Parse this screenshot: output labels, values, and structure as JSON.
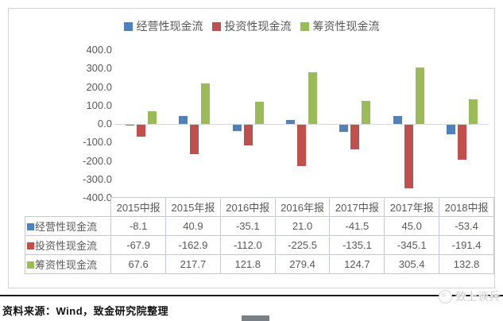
{
  "chart_data": {
    "type": "bar",
    "title": "",
    "categories": [
      "2015中报",
      "2015年报",
      "2016中报",
      "2016年报",
      "2017中报",
      "2017年报",
      "2018中报"
    ],
    "series": [
      {
        "name": "经营性现金流",
        "color": "#4f81bd",
        "values": [
          -8.1,
          40.9,
          -35.1,
          21.0,
          -41.5,
          45.0,
          -53.4
        ]
      },
      {
        "name": "投资性现金流",
        "color": "#c0504d",
        "values": [
          -67.9,
          -162.9,
          -112.0,
          -225.5,
          -135.1,
          -345.1,
          -191.4
        ]
      },
      {
        "name": "筹资性现金流",
        "color": "#9bbb59",
        "values": [
          67.6,
          217.7,
          121.8,
          279.4,
          124.7,
          305.4,
          132.8
        ]
      }
    ],
    "ylim": [
      -400,
      400
    ],
    "ytick_labels": [
      "400.0",
      "300.0",
      "200.0",
      "100.0",
      "0.0",
      "-100.0",
      "-200.0",
      "-300.0",
      "-400.0"
    ],
    "legend_position": "top",
    "grid": false,
    "data_table_shown": true,
    "value_decimals": 1
  },
  "footer": {
    "source_text": "资料来源：Wind，致金研究院整理",
    "watermark": "致上谈兵"
  },
  "colors": {
    "axis_text": "#595959",
    "zero_line": "#d9d9d9",
    "chart_border": "#d3d3d3",
    "table_border": "#c6cad0",
    "divider": "#1a1a1a",
    "bottom_bar": "#798086"
  }
}
